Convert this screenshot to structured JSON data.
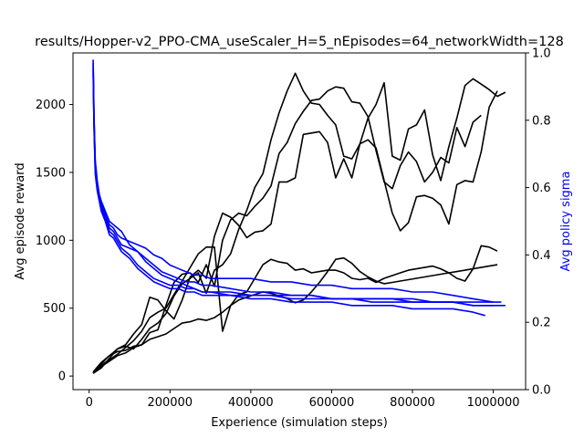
{
  "chart_data": {
    "type": "line",
    "title": "results/Hopper-v2_PPO-CMA_useScaler_H=5_nEpisodes=64_networkWidth=128",
    "xlabel": "Experience (simulation steps)",
    "ylabel": "Avg episode reward",
    "ylabel_right": "Avg policy sigma",
    "xlim": [
      -40000,
      1080000
    ],
    "ylim": [
      -100,
      2380
    ],
    "ylim_right": [
      0.0,
      1.0
    ],
    "x_ticks": [
      0,
      200000,
      400000,
      600000,
      800000,
      1000000
    ],
    "x_tick_labels": [
      "0",
      "200000",
      "400000",
      "600000",
      "800000",
      "1000000"
    ],
    "y_ticks": [
      0,
      500,
      1000,
      1500,
      2000
    ],
    "y_tick_labels": [
      "0",
      "500",
      "1000",
      "1500",
      "2000"
    ],
    "y2_ticks": [
      0.0,
      0.2,
      0.4,
      0.6,
      0.8,
      1.0
    ],
    "y2_tick_labels": [
      "0.0",
      "0.2",
      "0.4",
      "0.6",
      "0.8",
      "1.0"
    ],
    "colors": {
      "reward": "#000000",
      "sigma": "#0000ff",
      "right_label": "#0000ff"
    },
    "reward_series": [
      {
        "x": [
          10000,
          30000,
          50000,
          70000,
          90000,
          110000,
          130000,
          150000,
          170000,
          190000,
          210000,
          230000,
          250000,
          270000,
          290000,
          310000,
          330000,
          350000,
          370000,
          390000,
          410000,
          430000,
          450000,
          470000,
          490000,
          510000,
          530000,
          550000,
          570000,
          590000,
          610000,
          630000,
          650000,
          670000,
          690000,
          710000,
          730000,
          750000,
          770000,
          790000,
          810000,
          830000,
          850000,
          870000,
          890000,
          910000,
          930000,
          950000,
          970000,
          990000,
          1010000
        ],
        "y": [
          20,
          90,
          150,
          200,
          230,
          310,
          380,
          580,
          560,
          480,
          420,
          560,
          730,
          780,
          720,
          1030,
          1200,
          1170,
          1110,
          1020,
          1060,
          1070,
          1120,
          1430,
          1430,
          1460,
          1780,
          1790,
          1800,
          1720,
          1460,
          1600,
          1460,
          1710,
          1740,
          1680,
          1440,
          1200,
          1070,
          1130,
          1320,
          1330,
          1310,
          1260,
          1120,
          1410,
          1440,
          1430,
          1650,
          1980,
          2100
        ]
      },
      {
        "x": [
          10000,
          30000,
          50000,
          70000,
          90000,
          110000,
          130000,
          150000,
          170000,
          190000,
          210000,
          230000,
          250000,
          270000,
          290000,
          310000,
          330000,
          350000,
          370000,
          390000,
          410000,
          430000,
          450000,
          470000,
          490000,
          510000,
          530000,
          550000,
          570000,
          590000,
          610000,
          630000,
          650000,
          670000,
          690000,
          710000,
          730000,
          750000,
          770000,
          790000,
          810000,
          830000,
          850000,
          870000,
          890000,
          910000,
          930000,
          950000,
          970000
        ],
        "y": [
          30,
          100,
          150,
          180,
          190,
          220,
          230,
          320,
          340,
          520,
          690,
          750,
          760,
          690,
          820,
          660,
          1000,
          1150,
          1200,
          1180,
          1250,
          1310,
          1400,
          1640,
          1720,
          1860,
          1950,
          2030,
          2040,
          2100,
          2130,
          2120,
          2020,
          2010,
          1910,
          1660,
          1430,
          1380,
          1550,
          1650,
          1580,
          1430,
          1500,
          1610,
          1570,
          1830,
          1690,
          1870,
          1920
        ]
      },
      {
        "x": [
          10000,
          30000,
          50000,
          70000,
          90000,
          110000,
          130000,
          150000,
          170000,
          190000,
          210000,
          230000,
          250000,
          270000,
          290000,
          310000,
          330000,
          350000,
          370000,
          390000,
          410000,
          430000,
          450000,
          470000,
          490000,
          510000,
          530000,
          550000,
          570000,
          590000,
          610000,
          630000,
          650000,
          670000,
          690000,
          710000,
          730000,
          750000,
          770000,
          790000,
          810000,
          830000,
          850000,
          870000,
          890000,
          910000,
          930000,
          950000,
          970000,
          990000,
          1010000,
          1030000
        ],
        "y": [
          20,
          60,
          130,
          200,
          220,
          200,
          270,
          350,
          390,
          460,
          590,
          680,
          720,
          760,
          610,
          780,
          820,
          900,
          1080,
          1220,
          1390,
          1490,
          1740,
          1940,
          2100,
          2230,
          2100,
          2010,
          2000,
          1920,
          1850,
          1620,
          1600,
          1710,
          1900,
          2000,
          2160,
          1620,
          1590,
          1820,
          1850,
          1960,
          1630,
          1440,
          1690,
          1900,
          2140,
          2190,
          2150,
          2110,
          2060,
          2090
        ]
      },
      {
        "x": [
          10000,
          30000,
          50000,
          70000,
          90000,
          110000,
          130000,
          150000,
          170000,
          190000,
          210000,
          230000,
          250000,
          270000,
          290000,
          310000,
          330000,
          350000,
          370000,
          390000,
          410000,
          430000,
          450000,
          470000,
          490000,
          510000,
          530000,
          550000,
          570000,
          590000,
          610000,
          630000,
          650000,
          670000,
          690000,
          710000,
          730000,
          750000,
          770000,
          790000,
          810000,
          830000,
          850000,
          870000,
          890000,
          910000,
          930000,
          950000,
          970000,
          990000,
          1010000
        ],
        "y": [
          30,
          80,
          120,
          160,
          210,
          260,
          330,
          430,
          470,
          500,
          600,
          700,
          800,
          900,
          950,
          950,
          330,
          520,
          600,
          620,
          720,
          820,
          860,
          840,
          830,
          780,
          790,
          760,
          770,
          780,
          780,
          760,
          720,
          710,
          720,
          690,
          720,
          740,
          760,
          780,
          790,
          800,
          810,
          790,
          760,
          720,
          700,
          790,
          960,
          950,
          920
        ]
      },
      {
        "x": [
          10000,
          30000,
          50000,
          70000,
          90000,
          110000,
          130000,
          150000,
          170000,
          190000,
          210000,
          230000,
          250000,
          270000,
          290000,
          310000,
          330000,
          350000,
          370000,
          390000,
          410000,
          430000,
          450000,
          470000,
          490000,
          510000,
          530000,
          550000,
          570000,
          590000,
          610000,
          630000,
          650000,
          670000,
          690000,
          710000,
          730000,
          750000,
          770000,
          790000,
          810000,
          830000,
          850000,
          870000,
          890000,
          910000,
          930000,
          950000,
          970000,
          990000,
          1010000
        ],
        "y": [
          20,
          70,
          110,
          150,
          170,
          210,
          230,
          270,
          290,
          310,
          350,
          390,
          400,
          420,
          410,
          430,
          470,
          520,
          560,
          580,
          600,
          620,
          610,
          590,
          570,
          540,
          560,
          620,
          690,
          770,
          860,
          870,
          830,
          770,
          730,
          700,
          680,
          690,
          700,
          710,
          720,
          730,
          740,
          750,
          760,
          770,
          780,
          790,
          800,
          810,
          820
        ]
      }
    ],
    "sigma_series": [
      {
        "x": [
          10000,
          12000,
          15000,
          20000,
          25000,
          30000,
          40000,
          50000,
          60000,
          70000,
          80000,
          100000,
          120000,
          140000,
          160000,
          180000,
          200000,
          220000,
          240000,
          260000,
          280000,
          300000,
          350000,
          400000,
          450000,
          500000,
          550000,
          600000,
          650000,
          700000,
          750000,
          800000,
          850000,
          900000,
          950000,
          1000000,
          1020000
        ],
        "y": [
          0.98,
          0.82,
          0.68,
          0.62,
          0.58,
          0.56,
          0.53,
          0.5,
          0.49,
          0.48,
          0.47,
          0.43,
          0.41,
          0.38,
          0.36,
          0.34,
          0.33,
          0.32,
          0.31,
          0.3,
          0.29,
          0.29,
          0.29,
          0.28,
          0.28,
          0.27,
          0.27,
          0.27,
          0.27,
          0.26,
          0.26,
          0.26,
          0.26,
          0.26,
          0.26,
          0.26,
          0.26
        ]
      },
      {
        "x": [
          10000,
          12000,
          15000,
          20000,
          25000,
          30000,
          40000,
          50000,
          60000,
          70000,
          80000,
          100000,
          120000,
          140000,
          160000,
          180000,
          200000,
          220000,
          240000,
          260000,
          280000,
          300000,
          350000,
          400000,
          450000,
          500000,
          550000,
          600000,
          650000,
          700000,
          750000,
          800000,
          850000,
          900000,
          950000,
          1000000
        ],
        "y": [
          0.96,
          0.8,
          0.66,
          0.6,
          0.57,
          0.54,
          0.51,
          0.47,
          0.46,
          0.44,
          0.42,
          0.4,
          0.37,
          0.35,
          0.33,
          0.32,
          0.31,
          0.31,
          0.3,
          0.3,
          0.29,
          0.29,
          0.28,
          0.28,
          0.28,
          0.28,
          0.28,
          0.27,
          0.27,
          0.27,
          0.27,
          0.27,
          0.26,
          0.26,
          0.25,
          0.25
        ]
      },
      {
        "x": [
          10000,
          12000,
          15000,
          20000,
          25000,
          30000,
          40000,
          50000,
          60000,
          70000,
          80000,
          100000,
          120000,
          140000,
          160000,
          180000,
          200000,
          220000,
          240000,
          260000,
          280000,
          300000,
          350000,
          400000,
          450000,
          500000,
          550000,
          600000,
          650000,
          700000,
          750000,
          800000,
          850000,
          900000,
          950000,
          980000
        ],
        "y": [
          0.94,
          0.78,
          0.64,
          0.59,
          0.56,
          0.53,
          0.5,
          0.46,
          0.45,
          0.43,
          0.41,
          0.39,
          0.36,
          0.34,
          0.32,
          0.31,
          0.3,
          0.3,
          0.29,
          0.29,
          0.28,
          0.28,
          0.28,
          0.27,
          0.27,
          0.26,
          0.26,
          0.26,
          0.25,
          0.25,
          0.25,
          0.24,
          0.24,
          0.24,
          0.23,
          0.22
        ]
      },
      {
        "x": [
          10000,
          12000,
          15000,
          20000,
          25000,
          30000,
          40000,
          50000,
          60000,
          70000,
          80000,
          100000,
          120000,
          140000,
          160000,
          180000,
          200000,
          220000,
          240000,
          260000,
          280000,
          300000,
          350000,
          400000,
          450000,
          500000,
          550000,
          600000,
          650000,
          700000,
          750000,
          800000,
          850000,
          900000,
          950000,
          1000000
        ],
        "y": [
          0.97,
          0.81,
          0.67,
          0.61,
          0.58,
          0.55,
          0.52,
          0.49,
          0.48,
          0.46,
          0.45,
          0.44,
          0.43,
          0.42,
          0.4,
          0.39,
          0.37,
          0.36,
          0.35,
          0.34,
          0.34,
          0.33,
          0.33,
          0.33,
          0.32,
          0.32,
          0.31,
          0.31,
          0.3,
          0.3,
          0.3,
          0.29,
          0.29,
          0.28,
          0.27,
          0.26
        ]
      },
      {
        "x": [
          10000,
          12000,
          15000,
          20000,
          25000,
          30000,
          40000,
          50000,
          60000,
          70000,
          80000,
          100000,
          120000,
          140000,
          160000,
          180000,
          200000,
          220000,
          240000,
          260000,
          280000,
          300000,
          350000,
          400000,
          450000,
          500000,
          550000,
          600000,
          650000,
          700000,
          750000,
          800000,
          850000,
          900000,
          950000,
          1000000,
          1030000
        ],
        "y": [
          0.95,
          0.79,
          0.65,
          0.6,
          0.57,
          0.55,
          0.52,
          0.48,
          0.47,
          0.45,
          0.43,
          0.42,
          0.41,
          0.39,
          0.37,
          0.35,
          0.34,
          0.33,
          0.32,
          0.32,
          0.31,
          0.31,
          0.3,
          0.29,
          0.29,
          0.28,
          0.28,
          0.27,
          0.27,
          0.27,
          0.27,
          0.26,
          0.26,
          0.26,
          0.25,
          0.25,
          0.25
        ]
      }
    ]
  }
}
